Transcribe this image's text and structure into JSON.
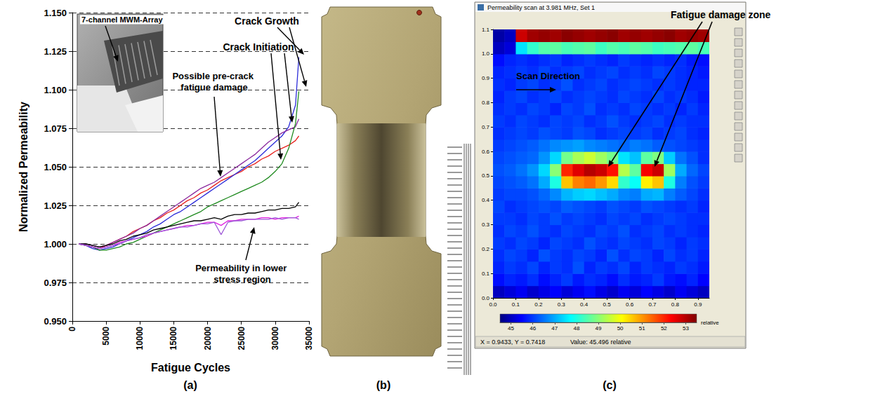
{
  "panel_labels": [
    "(a)",
    "(b)",
    "(c)"
  ],
  "chart_data": [
    {
      "type": "line",
      "xlabel": "Fatigue Cycles",
      "ylabel": "Normalized Permeability",
      "annotations": [
        "7-channel MWM-Array",
        "Crack Growth",
        "Crack Initiation",
        "Possible pre-crack fatigue damage",
        "Permeability in lower stress region"
      ],
      "x": [
        1000,
        2000,
        3000,
        4000,
        5000,
        6000,
        7000,
        8000,
        9000,
        10000,
        11000,
        12000,
        13000,
        14000,
        15000,
        16000,
        17000,
        18000,
        19000,
        20000,
        21000,
        22000,
        23000,
        24000,
        25000,
        26000,
        27000,
        28000,
        29000,
        30000,
        31000,
        32000,
        33000,
        33500
      ],
      "series": [
        {
          "color": "#e8201c",
          "values": [
            1.0,
            0.999,
            0.998,
            0.997,
            0.999,
            1.001,
            1.003,
            1.005,
            1.008,
            1.01,
            1.012,
            1.015,
            1.017,
            1.02,
            1.022,
            1.025,
            1.028,
            1.03,
            1.033,
            1.035,
            1.038,
            1.041,
            1.043,
            1.045,
            1.047,
            1.05,
            1.052,
            1.055,
            1.057,
            1.06,
            1.062,
            1.064,
            1.067,
            1.07
          ]
        },
        {
          "color": "#2b2bd9",
          "values": [
            1.0,
            0.999,
            0.997,
            0.996,
            0.997,
            0.998,
            1.0,
            1.002,
            1.004,
            1.006,
            1.008,
            1.011,
            1.013,
            1.016,
            1.019,
            1.021,
            1.024,
            1.027,
            1.03,
            1.033,
            1.036,
            1.039,
            1.042,
            1.045,
            1.048,
            1.051,
            1.054,
            1.058,
            1.062,
            1.066,
            1.07,
            1.076,
            1.09,
            1.121
          ]
        },
        {
          "color": "#8b2a9e",
          "values": [
            1.0,
            1.0,
            0.999,
            0.998,
            0.999,
            1.001,
            1.003,
            1.005,
            1.007,
            1.01,
            1.012,
            1.015,
            1.018,
            1.021,
            1.024,
            1.027,
            1.03,
            1.033,
            1.036,
            1.038,
            1.04,
            1.043,
            1.046,
            1.049,
            1.052,
            1.055,
            1.058,
            1.062,
            1.066,
            1.069,
            1.072,
            1.074,
            1.076,
            1.081
          ]
        },
        {
          "color": "#1e8a1e",
          "values": [
            1.0,
            0.999,
            0.998,
            0.996,
            0.996,
            0.997,
            0.998,
            1.0,
            1.001,
            1.003,
            1.005,
            1.007,
            1.009,
            1.011,
            1.013,
            1.015,
            1.017,
            1.019,
            1.021,
            1.024,
            1.026,
            1.028,
            1.03,
            1.032,
            1.034,
            1.036,
            1.038,
            1.04,
            1.043,
            1.047,
            1.052,
            1.062,
            1.078,
            1.099
          ]
        },
        {
          "color": "#000000",
          "values": [
            1.0,
            1.0,
            0.999,
            0.998,
            0.999,
            1.0,
            1.002,
            1.003,
            1.005,
            1.006,
            1.007,
            1.009,
            1.01,
            1.011,
            1.012,
            1.013,
            1.014,
            1.015,
            1.015,
            1.016,
            1.017,
            1.016,
            1.018,
            1.019,
            1.019,
            1.02,
            1.02,
            1.021,
            1.022,
            1.022,
            1.023,
            1.023,
            1.024,
            1.027
          ]
        },
        {
          "color": "#e020e0",
          "values": [
            1.0,
            0.999,
            0.998,
            0.997,
            0.998,
            0.999,
            1.001,
            1.002,
            1.003,
            1.004,
            1.005,
            1.007,
            1.008,
            1.009,
            1.01,
            1.011,
            1.012,
            1.012,
            1.013,
            1.014,
            1.014,
            1.012,
            1.015,
            1.015,
            1.016,
            1.016,
            1.016,
            1.017,
            1.017,
            1.016,
            1.017,
            1.017,
            1.017,
            1.018
          ]
        },
        {
          "color": "#9c55d6",
          "values": [
            1.0,
            0.999,
            0.998,
            0.997,
            0.998,
            0.999,
            1.0,
            1.002,
            1.003,
            1.004,
            1.006,
            1.007,
            1.008,
            1.009,
            1.01,
            1.011,
            1.011,
            1.012,
            1.013,
            1.013,
            1.014,
            1.006,
            1.014,
            1.015,
            1.015,
            1.016,
            1.016,
            1.016,
            1.016,
            1.017,
            1.016,
            1.017,
            1.017,
            1.016
          ]
        }
      ],
      "xlim": [
        0,
        35000
      ],
      "xticks": [
        0,
        5000,
        10000,
        15000,
        20000,
        25000,
        30000,
        35000
      ],
      "ylim": [
        0.95,
        1.15
      ],
      "yticks": [
        {
          "value": 0.95,
          "label": "0.950"
        },
        {
          "value": 0.975,
          "label": "0.975"
        },
        {
          "value": 1,
          "label": "1.000"
        },
        {
          "value": 1.025,
          "label": "1.025"
        },
        {
          "value": 1.05,
          "label": "1.050"
        },
        {
          "value": 1.075,
          "label": "1.075"
        },
        {
          "value": 1.1,
          "label": "1.100"
        },
        {
          "value": 1.125,
          "label": "1.125"
        },
        {
          "value": 1.15,
          "label": "1.150"
        }
      ],
      "grid": true
    },
    {
      "type": "heatmap",
      "title": "Permeability scan at 3.981 MHz, Set 1",
      "annotations": [
        "Scan Direction",
        "Fatigue damage zone"
      ],
      "status": [
        "X = 0.9433, Y = 0.7418",
        "Value: 45.496 relative"
      ],
      "x": [
        0.025,
        0.075,
        0.125,
        0.175,
        0.225,
        0.275,
        0.325,
        0.375,
        0.425,
        0.475,
        0.525,
        0.575,
        0.625,
        0.675,
        0.725,
        0.775,
        0.825,
        0.875,
        0.925
      ],
      "y": [
        0.025,
        0.075,
        0.125,
        0.175,
        0.225,
        0.275,
        0.325,
        0.375,
        0.425,
        0.475,
        0.525,
        0.575,
        0.625,
        0.675,
        0.725,
        0.775,
        0.825,
        0.875,
        0.925,
        0.975,
        1.025,
        1.075
      ],
      "cells": [
        [
          45.0,
          45.2,
          45.4,
          45.1,
          45.3,
          45.5,
          45.2,
          45.4,
          45.6,
          45.3,
          45.1,
          45.4,
          45.2,
          45.5,
          45.3,
          45.1,
          45.4,
          45.2,
          45.0
        ],
        [
          45.6,
          45.8,
          45.7,
          45.9,
          45.6,
          45.8,
          46.0,
          45.7,
          45.9,
          45.8,
          45.6,
          45.9,
          45.7,
          45.8,
          46.0,
          45.7,
          45.6,
          45.8,
          45.5
        ],
        [
          45.8,
          46.0,
          45.9,
          46.1,
          45.8,
          46.0,
          45.9,
          46.2,
          45.8,
          46.0,
          45.9,
          46.1,
          45.8,
          46.0,
          45.9,
          45.8,
          46.0,
          45.9,
          45.7
        ],
        [
          45.9,
          46.1,
          46.0,
          45.8,
          46.2,
          46.0,
          45.9,
          46.1,
          46.0,
          45.8,
          46.2,
          45.9,
          46.1,
          46.0,
          45.8,
          46.1,
          45.9,
          46.0,
          45.8
        ],
        [
          46.0,
          45.9,
          46.1,
          46.0,
          45.8,
          46.1,
          46.0,
          45.9,
          46.2,
          46.0,
          45.9,
          46.1,
          46.0,
          45.9,
          46.1,
          46.0,
          45.8,
          46.0,
          45.9
        ],
        [
          45.9,
          46.1,
          46.0,
          46.2,
          46.0,
          45.9,
          46.1,
          46.0,
          45.9,
          46.1,
          46.0,
          46.2,
          45.9,
          46.0,
          46.1,
          45.9,
          46.0,
          45.9,
          45.8
        ],
        [
          46.0,
          46.0,
          45.9,
          46.1,
          46.0,
          46.2,
          46.0,
          46.1,
          46.0,
          45.9,
          46.1,
          46.0,
          46.1,
          45.9,
          46.0,
          46.1,
          46.0,
          45.9,
          45.9
        ],
        [
          46.1,
          45.9,
          46.0,
          46.1,
          46.2,
          46.1,
          46.3,
          46.2,
          46.1,
          46.0,
          46.2,
          46.1,
          46.0,
          46.2,
          46.1,
          46.0,
          45.9,
          46.0,
          45.8
        ],
        [
          46.0,
          46.1,
          46.1,
          46.2,
          46.4,
          46.7,
          47.1,
          47.3,
          47.4,
          47.2,
          47.0,
          46.7,
          46.6,
          47.0,
          47.1,
          46.6,
          46.3,
          46.1,
          45.9
        ],
        [
          46.1,
          46.2,
          46.3,
          46.5,
          47.0,
          48.0,
          50.6,
          51.2,
          51.4,
          51.0,
          50.4,
          48.2,
          47.8,
          50.2,
          50.6,
          48.0,
          46.6,
          46.2,
          46.0
        ],
        [
          46.2,
          46.3,
          46.5,
          46.8,
          47.4,
          49.0,
          52.0,
          52.6,
          53.0,
          52.8,
          52.2,
          49.4,
          48.6,
          52.4,
          52.8,
          49.2,
          47.0,
          46.4,
          46.1
        ],
        [
          46.1,
          46.2,
          46.3,
          46.4,
          46.8,
          47.4,
          48.8,
          49.3,
          49.6,
          49.2,
          48.8,
          47.5,
          47.2,
          48.6,
          48.9,
          47.3,
          46.5,
          46.2,
          45.9
        ],
        [
          46.0,
          46.1,
          46.2,
          46.3,
          46.5,
          46.7,
          46.8,
          46.9,
          46.7,
          46.6,
          46.5,
          46.4,
          46.6,
          46.5,
          46.3,
          46.2,
          46.1,
          46.0,
          45.9
        ],
        [
          45.9,
          46.0,
          46.1,
          46.0,
          46.2,
          46.1,
          46.0,
          46.2,
          46.1,
          45.9,
          46.0,
          46.1,
          46.0,
          46.1,
          45.9,
          46.0,
          46.1,
          45.9,
          45.8
        ],
        [
          46.0,
          45.9,
          46.1,
          46.0,
          45.9,
          46.1,
          46.0,
          46.1,
          45.9,
          46.0,
          46.2,
          46.0,
          45.9,
          46.0,
          46.1,
          45.9,
          46.0,
          45.9,
          45.9
        ],
        [
          45.9,
          46.0,
          45.9,
          46.1,
          46.0,
          45.8,
          46.1,
          46.0,
          46.2,
          45.9,
          46.0,
          45.9,
          46.1,
          46.0,
          45.9,
          46.0,
          45.8,
          46.0,
          45.8
        ],
        [
          45.8,
          46.0,
          46.1,
          45.9,
          46.0,
          46.1,
          45.9,
          46.0,
          46.1,
          46.0,
          45.9,
          46.1,
          46.0,
          45.9,
          46.1,
          45.9,
          46.0,
          45.9,
          45.7
        ],
        [
          45.9,
          45.8,
          46.0,
          46.1,
          45.9,
          46.0,
          46.2,
          45.9,
          46.0,
          46.1,
          45.9,
          46.0,
          46.1,
          46.0,
          45.9,
          46.0,
          45.9,
          45.8,
          45.8
        ],
        [
          45.8,
          45.9,
          46.0,
          45.9,
          46.1,
          45.9,
          46.0,
          46.1,
          45.9,
          46.0,
          46.1,
          45.9,
          46.0,
          45.9,
          46.1,
          46.0,
          45.9,
          45.8,
          45.7
        ],
        [
          45.6,
          45.8,
          45.9,
          45.8,
          45.9,
          46.0,
          45.8,
          45.9,
          46.0,
          45.9,
          45.8,
          46.0,
          45.9,
          45.8,
          45.9,
          45.8,
          45.9,
          45.7,
          45.6
        ],
        [
          45.0,
          45.2,
          47.5,
          48.2,
          48.5,
          48.6,
          48.4,
          48.5,
          48.6,
          48.3,
          48.5,
          48.4,
          48.6,
          48.5,
          48.3,
          48.4,
          48.5,
          48.6,
          48.4
        ],
        [
          44.8,
          45.0,
          52.8,
          53.2,
          53.3,
          53.2,
          53.4,
          53.3,
          53.2,
          53.3,
          53.4,
          53.2,
          53.3,
          53.2,
          53.3,
          53.4,
          53.2,
          53.3,
          53.2
        ]
      ],
      "xlim": [
        0,
        0.95
      ],
      "xticks": [
        {
          "value": 0,
          "label": "0.0"
        },
        0.1,
        0.2,
        0.3,
        0.4,
        0.5,
        0.6,
        0.7,
        0.8,
        0.9
      ],
      "ylim": [
        0,
        1.1
      ],
      "yticks": [
        {
          "value": 0,
          "label": "0.0"
        },
        0.1,
        0.2,
        0.3,
        0.4,
        0.5,
        0.6,
        0.7,
        0.8,
        0.9,
        {
          "value": 1,
          "label": "1.0"
        },
        1.1
      ],
      "colorbar": {
        "range": [
          44.5,
          53.5
        ],
        "ticks": [
          45,
          46,
          47,
          48,
          49,
          50,
          51,
          52,
          53
        ],
        "label": "relative"
      }
    }
  ]
}
